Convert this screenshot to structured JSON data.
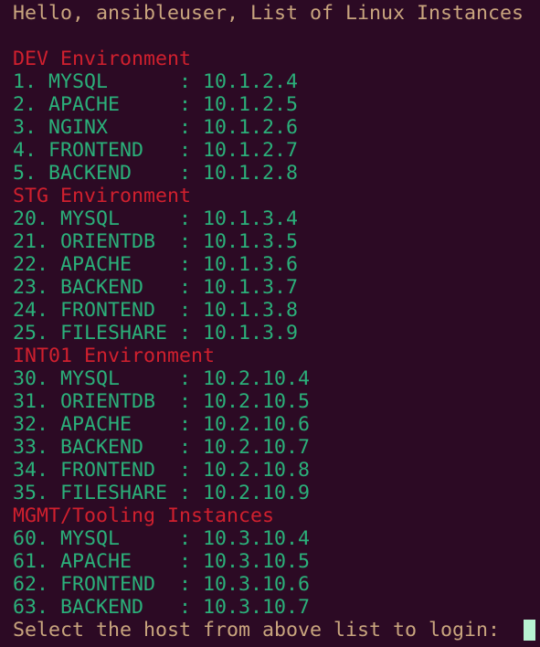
{
  "greeting": "Hello, ansibleuser, List of Linux Instances",
  "separator": ":",
  "sections": [
    {
      "title": "DEV Environment",
      "items": [
        {
          "number": "1.",
          "name": "MYSQL",
          "ip": "10.1.2.4"
        },
        {
          "number": "2.",
          "name": "APACHE",
          "ip": "10.1.2.5"
        },
        {
          "number": "3.",
          "name": "NGINX",
          "ip": "10.1.2.6"
        },
        {
          "number": "4.",
          "name": "FRONTEND",
          "ip": "10.1.2.7"
        },
        {
          "number": "5.",
          "name": "BACKEND",
          "ip": "10.1.2.8"
        }
      ]
    },
    {
      "title": "STG Environment",
      "items": [
        {
          "number": "20.",
          "name": "MYSQL",
          "ip": "10.1.3.4"
        },
        {
          "number": "21.",
          "name": "ORIENTDB",
          "ip": "10.1.3.5"
        },
        {
          "number": "22.",
          "name": "APACHE",
          "ip": "10.1.3.6"
        },
        {
          "number": "23.",
          "name": "BACKEND",
          "ip": "10.1.3.7"
        },
        {
          "number": "24.",
          "name": "FRONTEND",
          "ip": "10.1.3.8"
        },
        {
          "number": "25.",
          "name": "FILESHARE",
          "ip": "10.1.3.9"
        }
      ]
    },
    {
      "title": "INT01 Environment",
      "items": [
        {
          "number": "30.",
          "name": "MYSQL",
          "ip": "10.2.10.4"
        },
        {
          "number": "31.",
          "name": "ORIENTDB",
          "ip": "10.2.10.5"
        },
        {
          "number": "32.",
          "name": "APACHE",
          "ip": "10.2.10.6"
        },
        {
          "number": "33.",
          "name": "BACKEND",
          "ip": "10.2.10.7"
        },
        {
          "number": "34.",
          "name": "FRONTEND",
          "ip": "10.2.10.8"
        },
        {
          "number": "35.",
          "name": "FILESHARE",
          "ip": "10.2.10.9"
        }
      ]
    },
    {
      "title": "MGMT/Tooling Instances",
      "items": [
        {
          "number": "60.",
          "name": "MYSQL",
          "ip": "10.3.10.4"
        },
        {
          "number": "61.",
          "name": "APACHE",
          "ip": "10.3.10.5"
        },
        {
          "number": "62.",
          "name": "FRONTEND",
          "ip": "10.3.10.6"
        },
        {
          "number": "63.",
          "name": "BACKEND",
          "ip": "10.3.10.7"
        }
      ]
    }
  ],
  "prompt": "Select the host from above list to login:"
}
